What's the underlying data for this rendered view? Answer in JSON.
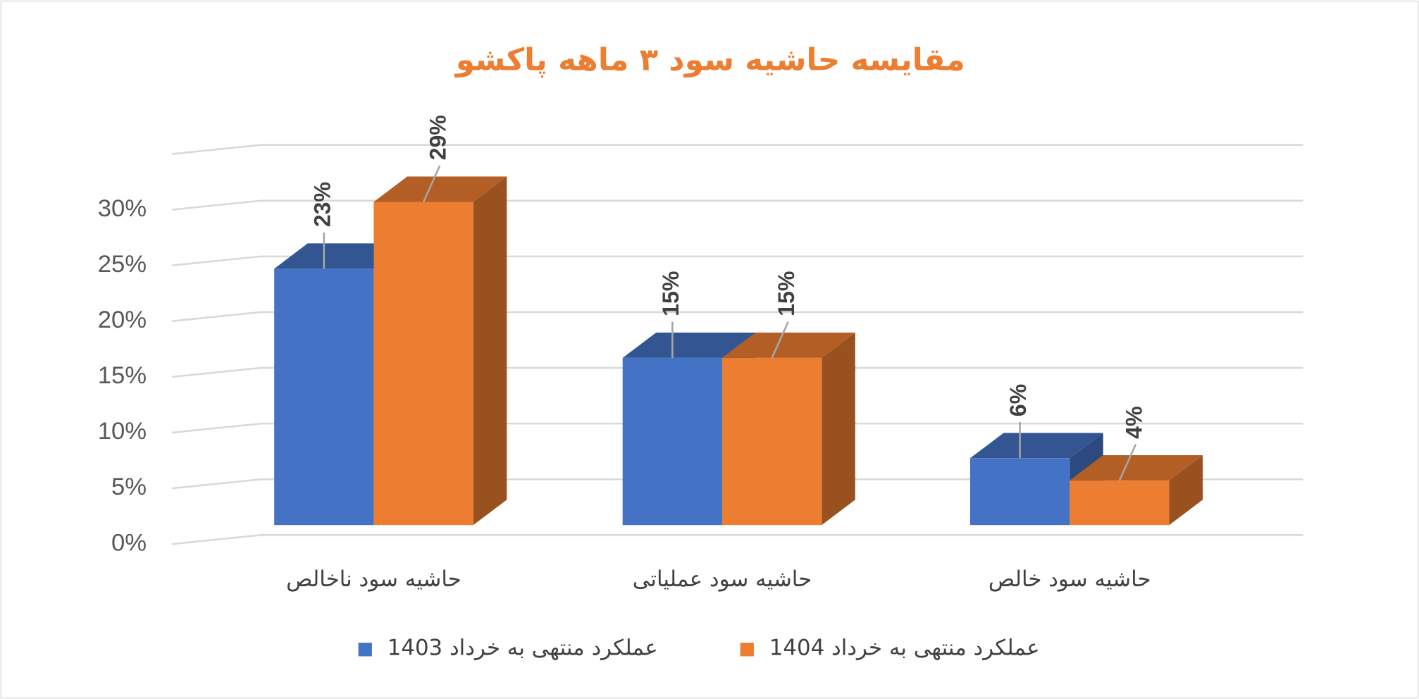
{
  "chart_data": {
    "type": "bar3d",
    "title": "مقایسه حاشیه سود ۳ ماهه پاکشو",
    "categories": [
      "حاشیه سود ناخالص",
      "حاشیه سود عملیاتی",
      "حاشیه سود خالص"
    ],
    "series": [
      {
        "name": "عملکرد منتهی به خرداد 1403",
        "color": "#4472c4",
        "values": [
          23,
          15,
          6
        ],
        "value_labels": [
          "23%",
          "15%",
          "6%"
        ]
      },
      {
        "name": "عملکرد منتهی به خرداد 1404",
        "color": "#ed7d31",
        "values": [
          29,
          15,
          4
        ],
        "value_labels": [
          "29%",
          "15%",
          "4%"
        ]
      }
    ],
    "ylim": [
      0,
      35
    ],
    "yticks": [
      {
        "value": 0,
        "label": "0%"
      },
      {
        "value": 5,
        "label": "5%"
      },
      {
        "value": 10,
        "label": "10%"
      },
      {
        "value": 15,
        "label": "15%"
      },
      {
        "value": 20,
        "label": "20%"
      },
      {
        "value": 25,
        "label": "25%"
      },
      {
        "value": 30,
        "label": "30%"
      }
    ],
    "grid": true,
    "legend": "bottom"
  }
}
